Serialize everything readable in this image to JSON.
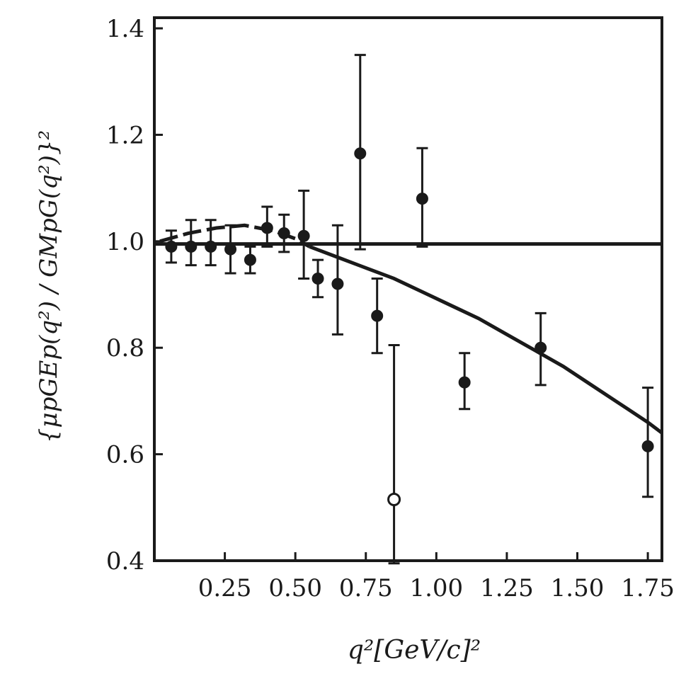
{
  "chart_data": {
    "type": "scatter",
    "xlabel": "q²[GeV/c]²",
    "ylabel": "{μpGEp(q²) / GMpG(q²)}²",
    "xlim": [
      0.0,
      1.8
    ],
    "ylim": [
      0.4,
      1.42
    ],
    "x_ticks": [
      0.25,
      0.5,
      0.75,
      1.0,
      1.25,
      1.5,
      1.75
    ],
    "x_tick_labels": [
      "0.25",
      "0.50",
      "0.75",
      "1.00",
      "1.25",
      "1.50",
      "1.75"
    ],
    "y_ticks": [
      0.4,
      0.6,
      0.8,
      1.0,
      1.2,
      1.4
    ],
    "y_tick_labels": [
      "0.4",
      "0.6",
      "0.8",
      "1.0",
      "1.2",
      "1.4"
    ],
    "grid": false,
    "legend": "none",
    "series": [
      {
        "marker": "filled-circle",
        "points": [
          {
            "x": 0.06,
            "y": 0.99,
            "err_lo": 0.03,
            "err_hi": 0.03
          },
          {
            "x": 0.13,
            "y": 0.99,
            "err_lo": 0.035,
            "err_hi": 0.05
          },
          {
            "x": 0.2,
            "y": 0.99,
            "err_lo": 0.035,
            "err_hi": 0.05
          },
          {
            "x": 0.27,
            "y": 0.985,
            "err_lo": 0.045,
            "err_hi": 0.045
          },
          {
            "x": 0.34,
            "y": 0.965,
            "err_lo": 0.025,
            "err_hi": 0.025
          },
          {
            "x": 0.4,
            "y": 1.025,
            "err_lo": 0.035,
            "err_hi": 0.04
          },
          {
            "x": 0.46,
            "y": 1.015,
            "err_lo": 0.035,
            "err_hi": 0.035
          },
          {
            "x": 0.53,
            "y": 1.01,
            "err_lo": 0.08,
            "err_hi": 0.085
          },
          {
            "x": 0.58,
            "y": 0.93,
            "err_lo": 0.035,
            "err_hi": 0.035
          },
          {
            "x": 0.65,
            "y": 0.92,
            "err_lo": 0.095,
            "err_hi": 0.11
          },
          {
            "x": 0.73,
            "y": 1.165,
            "err_lo": 0.18,
            "err_hi": 0.185
          },
          {
            "x": 0.79,
            "y": 0.86,
            "err_lo": 0.07,
            "err_hi": 0.07
          },
          {
            "x": 0.95,
            "y": 1.08,
            "err_lo": 0.09,
            "err_hi": 0.095
          },
          {
            "x": 1.1,
            "y": 0.735,
            "err_lo": 0.05,
            "err_hi": 0.055
          },
          {
            "x": 1.37,
            "y": 0.8,
            "err_lo": 0.07,
            "err_hi": 0.065
          },
          {
            "x": 1.75,
            "y": 0.615,
            "err_lo": 0.095,
            "err_hi": 0.11
          }
        ]
      },
      {
        "marker": "open-circle",
        "points": [
          {
            "x": 0.85,
            "y": 0.515,
            "err_lo": 0.12,
            "err_hi": 0.29
          }
        ]
      }
    ],
    "curves": [
      {
        "style": "solid",
        "x": [
          0.0,
          1.8
        ],
        "y": [
          0.995,
          0.995
        ]
      },
      {
        "style": "dashed",
        "x": [
          0.02,
          0.12,
          0.22,
          0.32,
          0.42,
          0.5,
          0.55
        ],
        "y": [
          1.0,
          1.015,
          1.025,
          1.03,
          1.02,
          1.005,
          0.99
        ]
      },
      {
        "style": "solid",
        "x": [
          0.55,
          0.65,
          0.75,
          0.85,
          0.95,
          1.05,
          1.15,
          1.25,
          1.35,
          1.45,
          1.55,
          1.65,
          1.75,
          1.8
        ],
        "y": [
          0.99,
          0.97,
          0.95,
          0.93,
          0.905,
          0.88,
          0.855,
          0.825,
          0.795,
          0.765,
          0.73,
          0.695,
          0.66,
          0.64
        ]
      }
    ]
  }
}
